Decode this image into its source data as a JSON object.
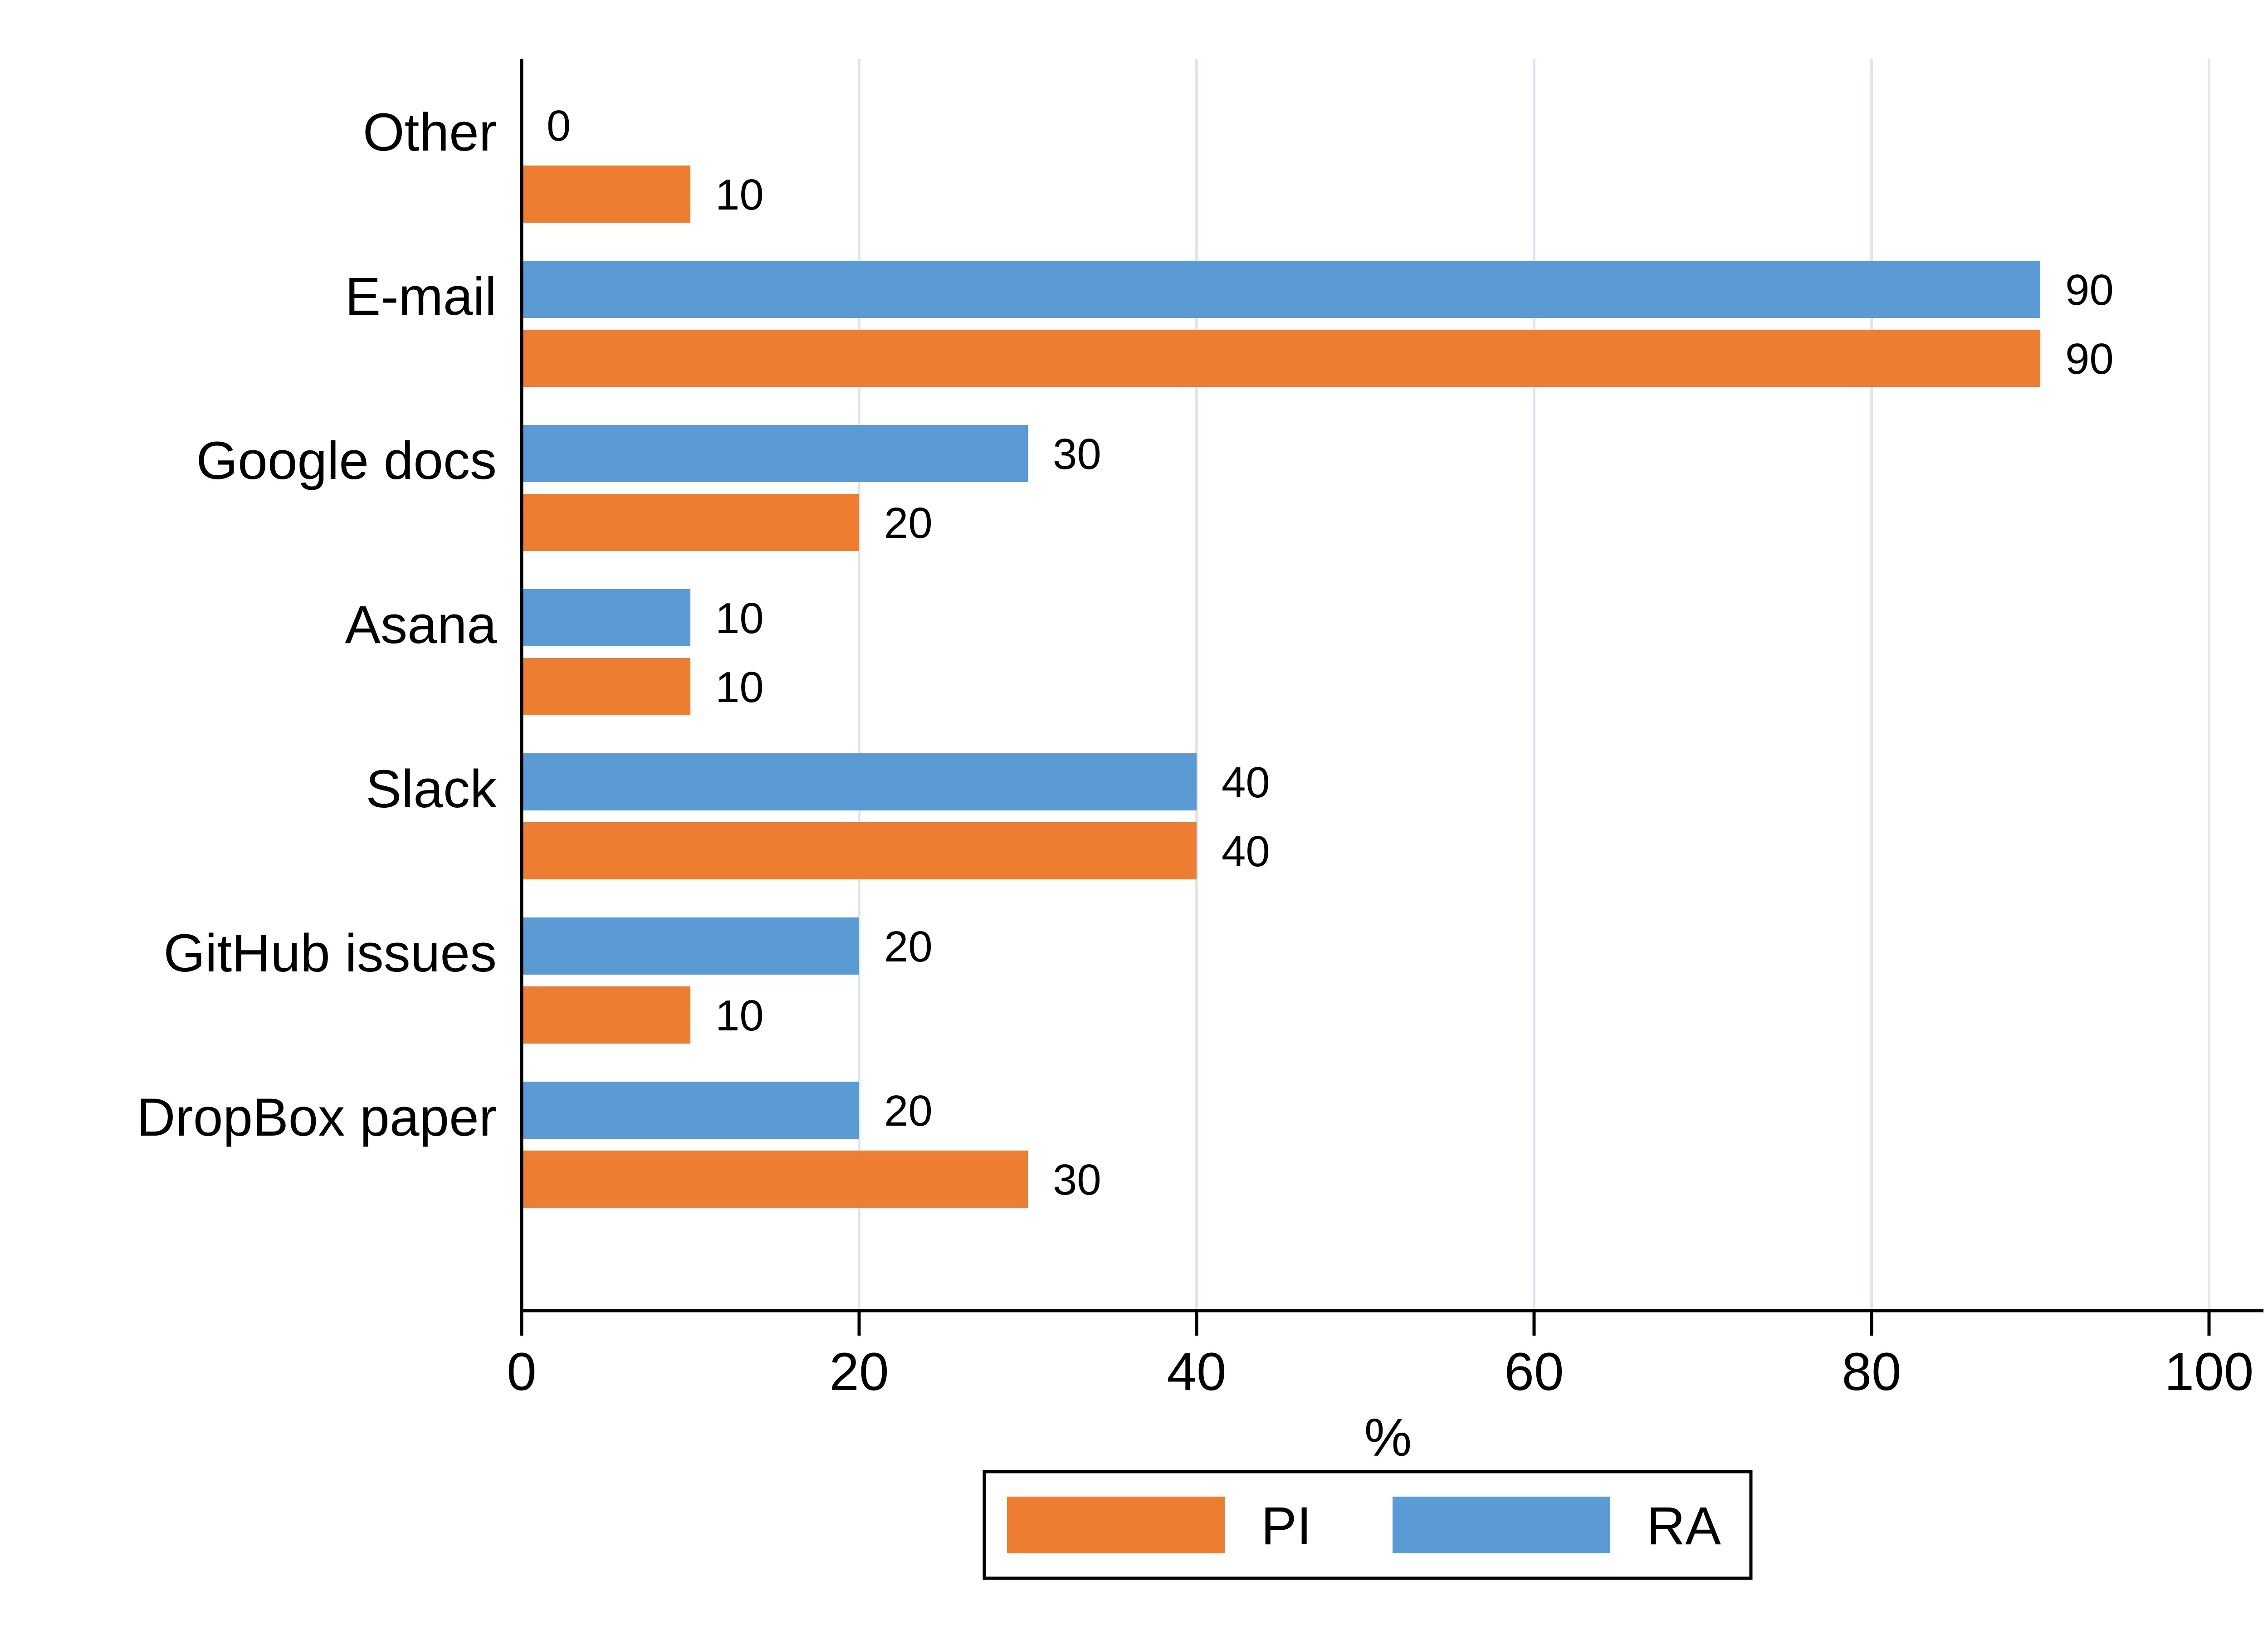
{
  "chart_data": {
    "type": "bar",
    "orientation": "horizontal",
    "categories": [
      "Other",
      "E-mail",
      "Google docs",
      "Asana",
      "Slack",
      "GitHub issues",
      "DropBox paper"
    ],
    "series": [
      {
        "name": "RA",
        "color": "#5b9bd5",
        "values": [
          0,
          90,
          30,
          10,
          40,
          20,
          20
        ]
      },
      {
        "name": "PI",
        "color": "#ed7d31",
        "values": [
          10,
          90,
          20,
          10,
          40,
          10,
          30
        ]
      }
    ],
    "xlabel": "%",
    "ylabel": "",
    "xlim": [
      0,
      100
    ],
    "xticks": [
      0,
      20,
      40,
      60,
      80,
      100
    ],
    "grid": "vertical",
    "legend": {
      "position": "bottom",
      "entries": [
        {
          "name": "PI",
          "color": "#ed7d31"
        },
        {
          "name": "RA",
          "color": "#5b9bd5"
        }
      ]
    }
  }
}
